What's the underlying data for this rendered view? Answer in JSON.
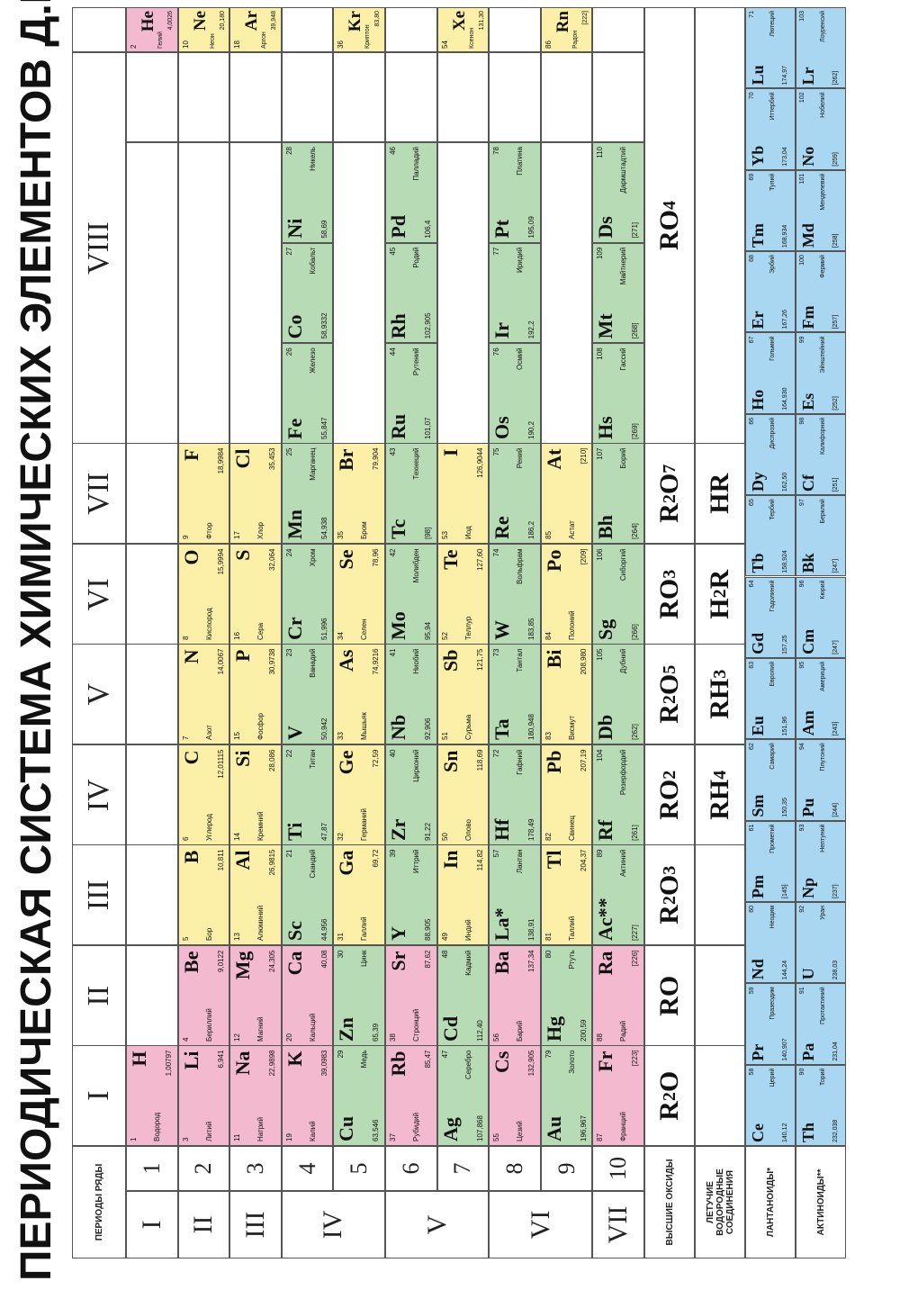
{
  "title": "ПЕРИОДИЧЕСКАЯ СИСТЕМА ХИМИЧЕСКИХ ЭЛЕМЕНТОВ Д.И. МЕНДЕЛЕЕВА",
  "header_label": "ПЕРИОДЫ РЯДЫ",
  "groups": [
    "I",
    "II",
    "III",
    "IV",
    "V",
    "VI",
    "VII",
    "VIII"
  ],
  "periods": [
    {
      "label": "I",
      "rows": [
        1
      ]
    },
    {
      "label": "II",
      "rows": [
        2
      ]
    },
    {
      "label": "III",
      "rows": [
        3
      ]
    },
    {
      "label": "IV",
      "rows": [
        4,
        5
      ]
    },
    {
      "label": "V",
      "rows": [
        6,
        7
      ]
    },
    {
      "label": "VI",
      "rows": [
        8,
        9
      ]
    },
    {
      "label": "VII",
      "rows": [
        10
      ]
    }
  ],
  "row_numbers": [
    "1",
    "2",
    "3",
    "4",
    "5",
    "6",
    "7",
    "8",
    "9",
    "10"
  ],
  "colors": {
    "s": "#f3b9cf",
    "p": "#fcf0a8",
    "d": "#b7dbb4",
    "f": "#a9d7f1",
    "grid": "#555555"
  },
  "labels": {
    "oxides": "ВЫСШИЕ ОКСИДЫ",
    "hydrogen": "ЛЕТУЧИЕ ВОДОРОДНЫЕ СОЕДИНЕНИЯ",
    "lanthanides": "ЛАНТАНОИДЫ*",
    "actinides": "АКТИНОИДЫ**"
  },
  "oxides": [
    "R<sub>2</sub>O",
    "RO",
    "R<sub>2</sub>O<sub>3</sub>",
    "RO<sub>2</sub>",
    "R<sub>2</sub>O<sub>5</sub>",
    "RO<sub>3</sub>",
    "R<sub>2</sub>O<sub>7</sub>",
    "RO<sub>4</sub>"
  ],
  "hydrides": [
    "",
    "",
    "",
    "RH<sub>4</sub>",
    "RH<sub>3</sub>",
    "H<sub>2</sub>R",
    "HR",
    ""
  ],
  "elements": [
    {
      "n": 1,
      "s": "H",
      "name": "Водород",
      "mass": "1,00797",
      "row": 1,
      "col": 0,
      "type": "s",
      "align": "r"
    },
    {
      "n": 2,
      "s": "He",
      "name": "Гелий",
      "mass": "4,0026",
      "row": 1,
      "col": 8,
      "type": "s",
      "align": "r"
    },
    {
      "n": 3,
      "s": "Li",
      "name": "Литий",
      "mass": "6,941",
      "row": 2,
      "col": 0,
      "type": "s",
      "align": "r"
    },
    {
      "n": 4,
      "s": "Be",
      "name": "Бериллий",
      "mass": "9,0122",
      "row": 2,
      "col": 1,
      "type": "s",
      "align": "r"
    },
    {
      "n": 5,
      "s": "B",
      "name": "Бор",
      "mass": "10,811",
      "row": 2,
      "col": 2,
      "type": "p",
      "align": "r"
    },
    {
      "n": 6,
      "s": "C",
      "name": "Углерод",
      "mass": "12,01115",
      "row": 2,
      "col": 3,
      "type": "p",
      "align": "r"
    },
    {
      "n": 7,
      "s": "N",
      "name": "Азот",
      "mass": "14,0067",
      "row": 2,
      "col": 4,
      "type": "p",
      "align": "r"
    },
    {
      "n": 8,
      "s": "O",
      "name": "Кислород",
      "mass": "15,9994",
      "row": 2,
      "col": 5,
      "type": "p",
      "align": "r"
    },
    {
      "n": 9,
      "s": "F",
      "name": "Фтор",
      "mass": "18,9984",
      "row": 2,
      "col": 6,
      "type": "p",
      "align": "r"
    },
    {
      "n": 10,
      "s": "Ne",
      "name": "Неон",
      "mass": "20,180",
      "row": 2,
      "col": 8,
      "type": "p",
      "align": "r"
    },
    {
      "n": 11,
      "s": "Na",
      "name": "Натрий",
      "mass": "22,9898",
      "row": 3,
      "col": 0,
      "type": "s",
      "align": "r"
    },
    {
      "n": 12,
      "s": "Mg",
      "name": "Магний",
      "mass": "24,305",
      "row": 3,
      "col": 1,
      "type": "s",
      "align": "r"
    },
    {
      "n": 13,
      "s": "Al",
      "name": "Алюминий",
      "mass": "26,9815",
      "row": 3,
      "col": 2,
      "type": "p",
      "align": "r"
    },
    {
      "n": 14,
      "s": "Si",
      "name": "Кремний",
      "mass": "28,086",
      "row": 3,
      "col": 3,
      "type": "p",
      "align": "r"
    },
    {
      "n": 15,
      "s": "P",
      "name": "Фосфор",
      "mass": "30,9738",
      "row": 3,
      "col": 4,
      "type": "p",
      "align": "r"
    },
    {
      "n": 16,
      "s": "S",
      "name": "Сера",
      "mass": "32,064",
      "row": 3,
      "col": 5,
      "type": "p",
      "align": "r"
    },
    {
      "n": 17,
      "s": "Cl",
      "name": "Хлор",
      "mass": "35,453",
      "row": 3,
      "col": 6,
      "type": "p",
      "align": "r"
    },
    {
      "n": 18,
      "s": "Ar",
      "name": "Аргон",
      "mass": "39,948",
      "row": 3,
      "col": 8,
      "type": "p",
      "align": "r"
    },
    {
      "n": 19,
      "s": "K",
      "name": "Калий",
      "mass": "39,0983",
      "row": 4,
      "col": 0,
      "type": "s",
      "align": "r"
    },
    {
      "n": 20,
      "s": "Ca",
      "name": "Кальций",
      "mass": "40,08",
      "row": 4,
      "col": 1,
      "type": "s",
      "align": "r"
    },
    {
      "n": 21,
      "s": "Sc",
      "name": "Скандий",
      "mass": "44,956",
      "row": 4,
      "col": 2,
      "type": "d",
      "align": "l"
    },
    {
      "n": 22,
      "s": "Ti",
      "name": "Титан",
      "mass": "47,87",
      "row": 4,
      "col": 3,
      "type": "d",
      "align": "l"
    },
    {
      "n": 23,
      "s": "V",
      "name": "Ванадий",
      "mass": "50,942",
      "row": 4,
      "col": 4,
      "type": "d",
      "align": "l"
    },
    {
      "n": 24,
      "s": "Cr",
      "name": "Хром",
      "mass": "51,996",
      "row": 4,
      "col": 5,
      "type": "d",
      "align": "l"
    },
    {
      "n": 25,
      "s": "Mn",
      "name": "Марганец",
      "mass": "54,938",
      "row": 4,
      "col": 6,
      "type": "d",
      "align": "l"
    },
    {
      "n": 26,
      "s": "Fe",
      "name": "Железо",
      "mass": "55,847",
      "row": 4,
      "col": 7,
      "type": "d",
      "align": "l",
      "sub": 0
    },
    {
      "n": 27,
      "s": "Co",
      "name": "Кобальт",
      "mass": "58,9332",
      "row": 4,
      "col": 7,
      "type": "d",
      "align": "l",
      "sub": 1
    },
    {
      "n": 28,
      "s": "Ni",
      "name": "Никель",
      "mass": "58,69",
      "row": 4,
      "col": 7,
      "type": "d",
      "align": "l",
      "sub": 2
    },
    {
      "n": 29,
      "s": "Cu",
      "name": "Медь",
      "mass": "63,546",
      "row": 5,
      "col": 0,
      "type": "d",
      "align": "l"
    },
    {
      "n": 30,
      "s": "Zn",
      "name": "Цинк",
      "mass": "65,39",
      "row": 5,
      "col": 1,
      "type": "d",
      "align": "l"
    },
    {
      "n": 31,
      "s": "Ga",
      "name": "Галлий",
      "mass": "69,72",
      "row": 5,
      "col": 2,
      "type": "p",
      "align": "r"
    },
    {
      "n": 32,
      "s": "Ge",
      "name": "Германий",
      "mass": "72,59",
      "row": 5,
      "col": 3,
      "type": "p",
      "align": "r"
    },
    {
      "n": 33,
      "s": "As",
      "name": "Мышьяк",
      "mass": "74,9216",
      "row": 5,
      "col": 4,
      "type": "p",
      "align": "r"
    },
    {
      "n": 34,
      "s": "Se",
      "name": "Селен",
      "mass": "78,96",
      "row": 5,
      "col": 5,
      "type": "p",
      "align": "r"
    },
    {
      "n": 35,
      "s": "Br",
      "name": "Бром",
      "mass": "79,904",
      "row": 5,
      "col": 6,
      "type": "p",
      "align": "r"
    },
    {
      "n": 36,
      "s": "Kr",
      "name": "Криптон",
      "mass": "83,80",
      "row": 5,
      "col": 8,
      "type": "p",
      "align": "r"
    },
    {
      "n": 37,
      "s": "Rb",
      "name": "Рубидий",
      "mass": "85,47",
      "row": 6,
      "col": 0,
      "type": "s",
      "align": "r"
    },
    {
      "n": 38,
      "s": "Sr",
      "name": "Стронций",
      "mass": "87,62",
      "row": 6,
      "col": 1,
      "type": "s",
      "align": "r"
    },
    {
      "n": 39,
      "s": "Y",
      "name": "Иттрий",
      "mass": "88,905",
      "row": 6,
      "col": 2,
      "type": "d",
      "align": "l"
    },
    {
      "n": 40,
      "s": "Zr",
      "name": "Цирконий",
      "mass": "91,22",
      "row": 6,
      "col": 3,
      "type": "d",
      "align": "l"
    },
    {
      "n": 41,
      "s": "Nb",
      "name": "Ниобий",
      "mass": "92,906",
      "row": 6,
      "col": 4,
      "type": "d",
      "align": "l"
    },
    {
      "n": 42,
      "s": "Mo",
      "name": "Молибден",
      "mass": "95,94",
      "row": 6,
      "col": 5,
      "type": "d",
      "align": "l"
    },
    {
      "n": 43,
      "s": "Tc",
      "name": "Технеций",
      "mass": "[98]",
      "row": 6,
      "col": 6,
      "type": "d",
      "align": "l"
    },
    {
      "n": 44,
      "s": "Ru",
      "name": "Рутений",
      "mass": "101,07",
      "row": 6,
      "col": 7,
      "type": "d",
      "align": "l",
      "sub": 0
    },
    {
      "n": 45,
      "s": "Rh",
      "name": "Родий",
      "mass": "102,905",
      "row": 6,
      "col": 7,
      "type": "d",
      "align": "l",
      "sub": 1
    },
    {
      "n": 46,
      "s": "Pd",
      "name": "Палладий",
      "mass": "106,4",
      "row": 6,
      "col": 7,
      "type": "d",
      "align": "l",
      "sub": 2
    },
    {
      "n": 47,
      "s": "Ag",
      "name": "Серебро",
      "mass": "107,868",
      "row": 7,
      "col": 0,
      "type": "d",
      "align": "l"
    },
    {
      "n": 48,
      "s": "Cd",
      "name": "Кадмий",
      "mass": "112,40",
      "row": 7,
      "col": 1,
      "type": "d",
      "align": "l"
    },
    {
      "n": 49,
      "s": "In",
      "name": "Индий",
      "mass": "114,82",
      "row": 7,
      "col": 2,
      "type": "p",
      "align": "r"
    },
    {
      "n": 50,
      "s": "Sn",
      "name": "Олово",
      "mass": "118,69",
      "row": 7,
      "col": 3,
      "type": "p",
      "align": "r"
    },
    {
      "n": 51,
      "s": "Sb",
      "name": "Сурьма",
      "mass": "121,75",
      "row": 7,
      "col": 4,
      "type": "p",
      "align": "r"
    },
    {
      "n": 52,
      "s": "Te",
      "name": "Теллур",
      "mass": "127,60",
      "row": 7,
      "col": 5,
      "type": "p",
      "align": "r"
    },
    {
      "n": 53,
      "s": "I",
      "name": "Иод",
      "mass": "126,9044",
      "row": 7,
      "col": 6,
      "type": "p",
      "align": "r"
    },
    {
      "n": 54,
      "s": "Xe",
      "name": "Ксенон",
      "mass": "131,30",
      "row": 7,
      "col": 8,
      "type": "p",
      "align": "r"
    },
    {
      "n": 55,
      "s": "Cs",
      "name": "Цезий",
      "mass": "132,905",
      "row": 8,
      "col": 0,
      "type": "s",
      "align": "r"
    },
    {
      "n": 56,
      "s": "Ba",
      "name": "Барий",
      "mass": "137,34",
      "row": 8,
      "col": 1,
      "type": "s",
      "align": "r"
    },
    {
      "n": 57,
      "s": "La*",
      "name": "Лантан",
      "mass": "138,91",
      "row": 8,
      "col": 2,
      "type": "d",
      "align": "l"
    },
    {
      "n": 72,
      "s": "Hf",
      "name": "Гафний",
      "mass": "178,49",
      "row": 8,
      "col": 3,
      "type": "d",
      "align": "l"
    },
    {
      "n": 73,
      "s": "Ta",
      "name": "Тантал",
      "mass": "180,948",
      "row": 8,
      "col": 4,
      "type": "d",
      "align": "l"
    },
    {
      "n": 74,
      "s": "W",
      "name": "Вольфрам",
      "mass": "183,85",
      "row": 8,
      "col": 5,
      "type": "d",
      "align": "l"
    },
    {
      "n": 75,
      "s": "Re",
      "name": "Рений",
      "mass": "186,2",
      "row": 8,
      "col": 6,
      "type": "d",
      "align": "l"
    },
    {
      "n": 76,
      "s": "Os",
      "name": "Осмий",
      "mass": "190,2",
      "row": 8,
      "col": 7,
      "type": "d",
      "align": "l",
      "sub": 0
    },
    {
      "n": 77,
      "s": "Ir",
      "name": "Иридий",
      "mass": "192,2",
      "row": 8,
      "col": 7,
      "type": "d",
      "align": "l",
      "sub": 1
    },
    {
      "n": 78,
      "s": "Pt",
      "name": "Платина",
      "mass": "195,09",
      "row": 8,
      "col": 7,
      "type": "d",
      "align": "l",
      "sub": 2
    },
    {
      "n": 79,
      "s": "Au",
      "name": "Золото",
      "mass": "196,967",
      "row": 9,
      "col": 0,
      "type": "d",
      "align": "l"
    },
    {
      "n": 80,
      "s": "Hg",
      "name": "Ртуть",
      "mass": "200,59",
      "row": 9,
      "col": 1,
      "type": "d",
      "align": "l"
    },
    {
      "n": 81,
      "s": "Tl",
      "name": "Таллий",
      "mass": "204,37",
      "row": 9,
      "col": 2,
      "type": "p",
      "align": "r"
    },
    {
      "n": 82,
      "s": "Pb",
      "name": "Свинец",
      "mass": "207,19",
      "row": 9,
      "col": 3,
      "type": "p",
      "align": "r"
    },
    {
      "n": 83,
      "s": "Bi",
      "name": "Висмут",
      "mass": "208,980",
      "row": 9,
      "col": 4,
      "type": "p",
      "align": "r"
    },
    {
      "n": 84,
      "s": "Po",
      "name": "Полоний",
      "mass": "[209]",
      "row": 9,
      "col": 5,
      "type": "p",
      "align": "r"
    },
    {
      "n": 85,
      "s": "At",
      "name": "Астат",
      "mass": "[210]",
      "row": 9,
      "col": 6,
      "type": "p",
      "align": "r"
    },
    {
      "n": 86,
      "s": "Rn",
      "name": "Радон",
      "mass": "[222]",
      "row": 9,
      "col": 8,
      "type": "p",
      "align": "r"
    },
    {
      "n": 87,
      "s": "Fr",
      "name": "Франций",
      "mass": "[223]",
      "row": 10,
      "col": 0,
      "type": "s",
      "align": "r"
    },
    {
      "n": 88,
      "s": "Ra",
      "name": "Радий",
      "mass": "[226]",
      "row": 10,
      "col": 1,
      "type": "s",
      "align": "r"
    },
    {
      "n": 89,
      "s": "Ac**",
      "name": "Актиний",
      "mass": "[227]",
      "row": 10,
      "col": 2,
      "type": "d",
      "align": "l"
    },
    {
      "n": 104,
      "s": "Rf",
      "name": "Резерфордий",
      "mass": "[261]",
      "row": 10,
      "col": 3,
      "type": "d",
      "align": "l"
    },
    {
      "n": 105,
      "s": "Db",
      "name": "Дубний",
      "mass": "[262]",
      "row": 10,
      "col": 4,
      "type": "d",
      "align": "l"
    },
    {
      "n": 106,
      "s": "Sg",
      "name": "Сиборгий",
      "mass": "[266]",
      "row": 10,
      "col": 5,
      "type": "d",
      "align": "l"
    },
    {
      "n": 107,
      "s": "Bh",
      "name": "Борий",
      "mass": "[264]",
      "row": 10,
      "col": 6,
      "type": "d",
      "align": "l"
    },
    {
      "n": 108,
      "s": "Hs",
      "name": "Гассий",
      "mass": "[269]",
      "row": 10,
      "col": 7,
      "type": "d",
      "align": "l",
      "sub": 0
    },
    {
      "n": 109,
      "s": "Mt",
      "name": "Майтнерий",
      "mass": "[268]",
      "row": 10,
      "col": 7,
      "type": "d",
      "align": "l",
      "sub": 1
    },
    {
      "n": 110,
      "s": "Ds",
      "name": "Дармштадтий",
      "mass": "[271]",
      "row": 10,
      "col": 7,
      "type": "d",
      "align": "l",
      "sub": 2
    }
  ],
  "lanthanides": [
    {
      "n": 58,
      "s": "Ce",
      "name": "Церий",
      "mass": "140,12"
    },
    {
      "n": 59,
      "s": "Pr",
      "name": "Празеодим",
      "mass": "140,907"
    },
    {
      "n": 60,
      "s": "Nd",
      "name": "Неодим",
      "mass": "144,24"
    },
    {
      "n": 61,
      "s": "Pm",
      "name": "Прометий",
      "mass": "[145]"
    },
    {
      "n": 62,
      "s": "Sm",
      "name": "Самарий",
      "mass": "150,35"
    },
    {
      "n": 63,
      "s": "Eu",
      "name": "Европий",
      "mass": "151,96"
    },
    {
      "n": 64,
      "s": "Gd",
      "name": "Гадолиний",
      "mass": "157,25"
    },
    {
      "n": 65,
      "s": "Tb",
      "name": "Тербий",
      "mass": "158,924"
    },
    {
      "n": 66,
      "s": "Dy",
      "name": "Диспрозий",
      "mass": "162,50"
    },
    {
      "n": 67,
      "s": "Ho",
      "name": "Гольмий",
      "mass": "164,930"
    },
    {
      "n": 68,
      "s": "Er",
      "name": "Эрбий",
      "mass": "167,26"
    },
    {
      "n": 69,
      "s": "Tm",
      "name": "Тулий",
      "mass": "168,934"
    },
    {
      "n": 70,
      "s": "Yb",
      "name": "Иттербий",
      "mass": "173,04"
    },
    {
      "n": 71,
      "s": "Lu",
      "name": "Лютеций",
      "mass": "174,97"
    }
  ],
  "actinides": [
    {
      "n": 90,
      "s": "Th",
      "name": "Торий",
      "mass": "232,038"
    },
    {
      "n": 91,
      "s": "Pa",
      "name": "Протактиний",
      "mass": "231,04"
    },
    {
      "n": 92,
      "s": "U",
      "name": "Уран",
      "mass": "238,03"
    },
    {
      "n": 93,
      "s": "Np",
      "name": "Нептуний",
      "mass": "[237]"
    },
    {
      "n": 94,
      "s": "Pu",
      "name": "Плутоний",
      "mass": "[244]"
    },
    {
      "n": 95,
      "s": "Am",
      "name": "Америций",
      "mass": "[243]"
    },
    {
      "n": 96,
      "s": "Cm",
      "name": "Кюрий",
      "mass": "[247]"
    },
    {
      "n": 97,
      "s": "Bk",
      "name": "Берклий",
      "mass": "[247]"
    },
    {
      "n": 98,
      "s": "Cf",
      "name": "Калифорний",
      "mass": "[251]"
    },
    {
      "n": 99,
      "s": "Es",
      "name": "Эйнштейний",
      "mass": "[252]"
    },
    {
      "n": 100,
      "s": "Fm",
      "name": "Фермий",
      "mass": "[257]"
    },
    {
      "n": 101,
      "s": "Md",
      "name": "Менделевий",
      "mass": "[258]"
    },
    {
      "n": 102,
      "s": "No",
      "name": "Нобелий",
      "mass": "[259]"
    },
    {
      "n": 103,
      "s": "Lr",
      "name": "Лоуренсий",
      "mass": "[262]"
    }
  ]
}
